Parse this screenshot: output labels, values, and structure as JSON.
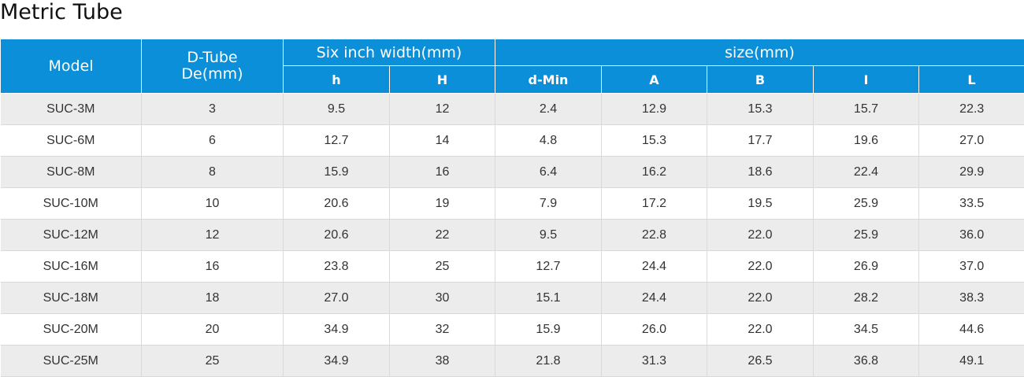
{
  "title": "Metric Tube",
  "header": {
    "model": "Model",
    "dtube_line1": "D-Tube",
    "dtube_line2": "De(mm)",
    "six_inch": "Six inch width(mm)",
    "size": "size(mm)",
    "sub": [
      "h",
      "H",
      "d-Min",
      "A",
      "B",
      "I",
      "L"
    ]
  },
  "rows": [
    [
      "SUC-3M",
      "3",
      "9.5",
      "12",
      "2.4",
      "12.9",
      "15.3",
      "15.7",
      "22.3"
    ],
    [
      "SUC-6M",
      "6",
      "12.7",
      "14",
      "4.8",
      "15.3",
      "17.7",
      "19.6",
      "27.0"
    ],
    [
      "SUC-8M",
      "8",
      "15.9",
      "16",
      "6.4",
      "16.2",
      "18.6",
      "22.4",
      "29.9"
    ],
    [
      "SUC-10M",
      "10",
      "20.6",
      "19",
      "7.9",
      "17.2",
      "19.5",
      "25.9",
      "33.5"
    ],
    [
      "SUC-12M",
      "12",
      "20.6",
      "22",
      "9.5",
      "22.8",
      "22.0",
      "25.9",
      "36.0"
    ],
    [
      "SUC-16M",
      "16",
      "23.8",
      "25",
      "12.7",
      "24.4",
      "22.0",
      "26.9",
      "37.0"
    ],
    [
      "SUC-18M",
      "18",
      "27.0",
      "30",
      "15.1",
      "24.4",
      "22.0",
      "28.2",
      "38.3"
    ],
    [
      "SUC-20M",
      "20",
      "34.9",
      "32",
      "15.9",
      "26.0",
      "22.0",
      "34.5",
      "44.6"
    ],
    [
      "SUC-25M",
      "25",
      "34.9",
      "38",
      "21.8",
      "31.3",
      "26.5",
      "36.8",
      "49.1"
    ]
  ],
  "colors": {
    "header_bg": "#0b8fd9",
    "header_text": "#ffffff",
    "row_alt": "#ececec",
    "row_plain": "#ffffff"
  }
}
